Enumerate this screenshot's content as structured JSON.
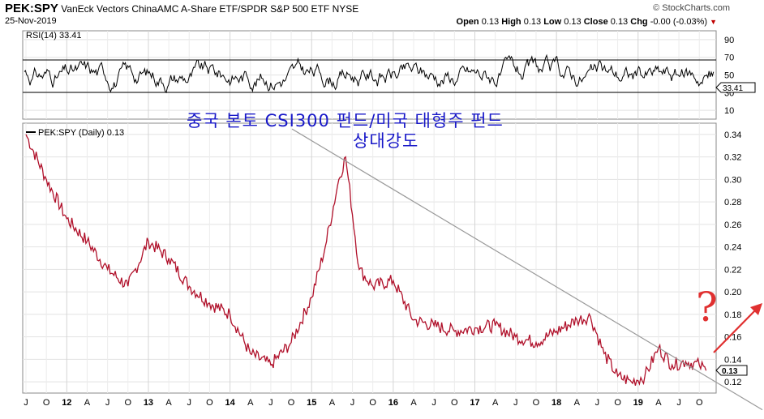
{
  "header": {
    "symbol": "PEK:SPY",
    "description": "VanEck Vectors ChinaAMC A-Share ETF/SPDR S&P 500 ETF",
    "exchange": "NYSE",
    "date": "25-Nov-2019",
    "brand": "© StockCharts.com",
    "open_label": "Open",
    "open_value": "0.13",
    "high_label": "High",
    "high_value": "0.13",
    "low_label": "Low",
    "low_value": "0.13",
    "close_label": "Close",
    "close_value": "0.13",
    "chg_label": "Chg",
    "chg_value": "-0.00 (-0.03%)",
    "chg_arrow": "▼"
  },
  "annotation": {
    "line1": "중국 본토 CSI300 펀드/미국 대형주 펀드",
    "line2": "상대강도",
    "question_mark": "?"
  },
  "colors": {
    "price_line": "#b0102a",
    "rsi_line": "#000000",
    "trendline": "#999999",
    "annotation_text": "#1818c8",
    "question_mark": "#e03030",
    "arrow": "#e03030",
    "grid": "#e2e2e2",
    "rsi_band": "#000000"
  },
  "chart_data": [
    {
      "type": "line",
      "title": "RSI(14) 33.41",
      "series": [
        {
          "name": "RSI(14)",
          "last_value": 33.41
        }
      ],
      "y_ticks": [
        10,
        30,
        50,
        70,
        90
      ],
      "ylim": [
        0,
        100
      ],
      "overbought": 70,
      "oversold": 30,
      "last_label": "33.41"
    },
    {
      "type": "line",
      "title": "PEK:SPY (Daily) 0.13",
      "ylim": [
        0.11,
        0.35
      ],
      "y_ticks": [
        "0.12",
        "0.14",
        "0.16",
        "0.18",
        "0.20",
        "0.22",
        "0.24",
        "0.26",
        "0.28",
        "0.30",
        "0.32",
        "0.34"
      ],
      "last_label": "0.13",
      "x_tick_labels": [
        "J",
        "O",
        "12",
        "A",
        "J",
        "O",
        "13",
        "A",
        "J",
        "O",
        "14",
        "A",
        "J",
        "O",
        "15",
        "A",
        "J",
        "O",
        "16",
        "A",
        "J",
        "O",
        "17",
        "A",
        "J",
        "O",
        "18",
        "A",
        "J",
        "O",
        "19",
        "A",
        "J",
        "O"
      ],
      "x_year_labels": [
        "12",
        "13",
        "14",
        "15",
        "16",
        "17",
        "18",
        "19"
      ],
      "grid": true,
      "series": [
        {
          "name": "PEK:SPY",
          "x": [
            "2011-07",
            "2011-10",
            "2012-01",
            "2012-04",
            "2012-07",
            "2012-10",
            "2013-01",
            "2013-04",
            "2013-07",
            "2013-10",
            "2014-01",
            "2014-04",
            "2014-07",
            "2014-10",
            "2015-01",
            "2015-03",
            "2015-05",
            "2015-06",
            "2015-08",
            "2015-10",
            "2016-01",
            "2016-04",
            "2016-07",
            "2016-10",
            "2017-01",
            "2017-04",
            "2017-07",
            "2017-10",
            "2018-01",
            "2018-04",
            "2018-06",
            "2018-08",
            "2018-10",
            "2018-12",
            "2019-02",
            "2019-04",
            "2019-06",
            "2019-08",
            "2019-10",
            "2019-11"
          ],
          "y": [
            0.34,
            0.3,
            0.265,
            0.245,
            0.22,
            0.205,
            0.245,
            0.23,
            0.205,
            0.19,
            0.18,
            0.145,
            0.135,
            0.155,
            0.195,
            0.24,
            0.3,
            0.32,
            0.22,
            0.205,
            0.21,
            0.175,
            0.17,
            0.165,
            0.168,
            0.17,
            0.16,
            0.155,
            0.165,
            0.175,
            0.178,
            0.145,
            0.125,
            0.12,
            0.125,
            0.15,
            0.135,
            0.138,
            0.135,
            0.13
          ]
        }
      ],
      "annotations": [
        {
          "type": "trendline",
          "from": [
            "2015-05",
            0.32
          ],
          "to": [
            "2019-11",
            0.125
          ]
        },
        {
          "type": "arrow",
          "direction": "up-right"
        }
      ]
    }
  ]
}
